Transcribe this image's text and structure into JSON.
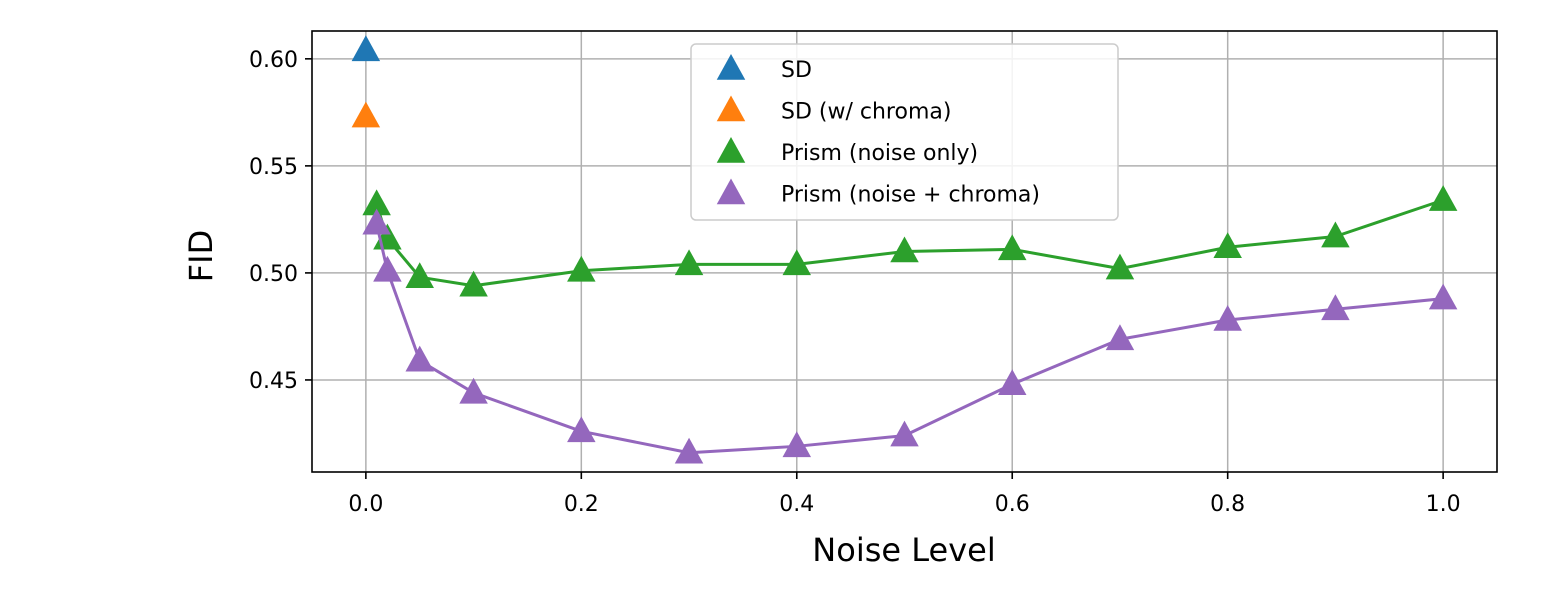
{
  "chart_data": {
    "type": "line",
    "xlabel": "Noise Level",
    "ylabel": "FID",
    "xlim": [
      -0.05,
      1.05
    ],
    "ylim": [
      0.407,
      0.613
    ],
    "xticks": [
      "0.0",
      "0.2",
      "0.4",
      "0.6",
      "0.8",
      "1.0"
    ],
    "yticks": [
      "0.45",
      "0.50",
      "0.55",
      "0.60"
    ],
    "grid": true,
    "legend_position": "top-center",
    "marker": "triangle-up",
    "series": [
      {
        "name": "SD",
        "color": "#1f77b4",
        "line": false,
        "x": [
          0.0
        ],
        "y": [
          0.604
        ]
      },
      {
        "name": "SD (w/ chroma)",
        "color": "#ff7f0e",
        "line": false,
        "x": [
          0.0
        ],
        "y": [
          0.573
        ]
      },
      {
        "name": "Prism (noise only)",
        "color": "#2ca02c",
        "line": true,
        "x": [
          0.01,
          0.02,
          0.05,
          0.1,
          0.2,
          0.3,
          0.4,
          0.5,
          0.6,
          0.7,
          0.8,
          0.9,
          1.0
        ],
        "y": [
          0.532,
          0.516,
          0.498,
          0.494,
          0.501,
          0.504,
          0.504,
          0.51,
          0.511,
          0.502,
          0.512,
          0.517,
          0.534
        ]
      },
      {
        "name": "Prism (noise + chroma)",
        "color": "#9467bd",
        "line": true,
        "x": [
          0.01,
          0.02,
          0.05,
          0.1,
          0.2,
          0.3,
          0.4,
          0.5,
          0.6,
          0.7,
          0.8,
          0.9,
          1.0
        ],
        "y": [
          0.523,
          0.501,
          0.459,
          0.444,
          0.426,
          0.416,
          0.419,
          0.424,
          0.448,
          0.469,
          0.478,
          0.483,
          0.488
        ]
      }
    ]
  }
}
